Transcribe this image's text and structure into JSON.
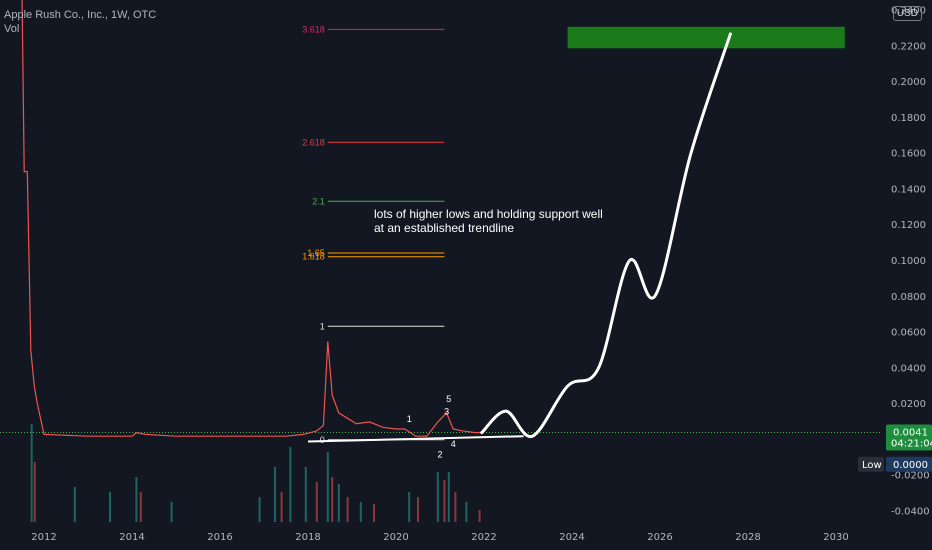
{
  "header": {
    "title": "Apple Rush Co., Inc., 1W, OTC",
    "vol_label": "Vol",
    "currency_button": "USD"
  },
  "colors": {
    "background": "#131722",
    "up": "#26a69a",
    "down": "#ef5350",
    "price_line": "#4caf50",
    "target_zone": "#1b7b1b",
    "annotation": "#ffffff"
  },
  "price_tag": {
    "value": "0.0041",
    "countdown": "04:21:04"
  },
  "low_tag": {
    "label": "Low",
    "value": "0.0000"
  },
  "annotation_text": [
    "lots of higher lows and holding support well",
    "at an established trendline"
  ],
  "chart_data": {
    "type": "line",
    "title": "Apple Rush Co., Inc., 1W, OTC",
    "x_ticks": [
      "2012",
      "2014",
      "2016",
      "2018",
      "2020",
      "2022",
      "2024",
      "2026",
      "2028",
      "2030"
    ],
    "y_ticks": [
      -0.04,
      -0.02,
      0.0,
      0.02,
      0.04,
      0.06,
      0.08,
      0.1,
      0.12,
      0.14,
      0.16,
      0.18,
      0.2,
      0.22,
      0.24
    ],
    "y_tick_labels": [
      "-0.0400",
      "-0.0200",
      "0.0000",
      "0.0200",
      "0.0400",
      "0.0600",
      "0.0800",
      "0.1000",
      "0.1200",
      "0.1400",
      "0.1600",
      "0.1800",
      "0.2000",
      "0.2200",
      "0.2400"
    ],
    "ylim": [
      -0.046,
      0.246
    ],
    "xlim": [
      2011.0,
      2031.0
    ],
    "price_series": {
      "x": [
        2011.05,
        2011.5,
        2011.55,
        2011.62,
        2011.7,
        2011.78,
        2011.85,
        2012.0,
        2013.0,
        2014.0,
        2014.1,
        2014.3,
        2015.0,
        2016.0,
        2017.0,
        2017.5,
        2017.9,
        2018.2,
        2018.35,
        2018.45,
        2018.55,
        2018.7,
        2018.9,
        2019.1,
        2019.4,
        2019.7,
        2020.0,
        2020.2,
        2020.45,
        2020.7,
        2020.95,
        2021.15,
        2021.3,
        2021.5,
        2021.8,
        2022.0
      ],
      "y": [
        0.25,
        0.25,
        0.15,
        0.15,
        0.05,
        0.03,
        0.02,
        0.003,
        0.002,
        0.002,
        0.004,
        0.003,
        0.002,
        0.002,
        0.002,
        0.002,
        0.003,
        0.005,
        0.008,
        0.055,
        0.025,
        0.015,
        0.012,
        0.009,
        0.01,
        0.007,
        0.006,
        0.006,
        0.002,
        0.002,
        0.01,
        0.015,
        0.006,
        0.005,
        0.004,
        0.0041
      ]
    },
    "projection": {
      "x": [
        2021.95,
        2022.5,
        2023.1,
        2023.9,
        2024.6,
        2025.3,
        2025.9,
        2026.7,
        2027.6
      ],
      "y": [
        0.004,
        0.016,
        0.002,
        0.03,
        0.04,
        0.1,
        0.081,
        0.16,
        0.227
      ]
    },
    "trendline": {
      "x": [
        2018.0,
        2022.9
      ],
      "y": [
        -0.001,
        0.002
      ]
    },
    "target_zone": {
      "x": [
        2023.9,
        2030.2
      ],
      "y": [
        0.219,
        0.231
      ]
    },
    "fib_levels": [
      {
        "label": "3.618",
        "value": 0.2296,
        "color": "#e91e63"
      },
      {
        "label": "2.618",
        "value": 0.1664,
        "color": "#f23645"
      },
      {
        "label": "2.1",
        "value": 0.1334,
        "color": "#4caf50"
      },
      {
        "label": "1.65",
        "value": 0.1045,
        "color": "#ff9800"
      },
      {
        "label": "1.618",
        "value": 0.1024,
        "color": "#ff9800"
      },
      {
        "label": "1",
        "value": 0.0635,
        "color": "#e0e0e0"
      },
      {
        "label": "0",
        "value": 0.0,
        "color": "#e0e0e0"
      }
    ],
    "fib_x": [
      2018.45,
      2021.1
    ],
    "wave_labels": [
      {
        "label": "1",
        "x": 2020.3,
        "y": 0.01
      },
      {
        "label": "2",
        "x": 2021.0,
        "y": -0.01
      },
      {
        "label": "3",
        "x": 2021.15,
        "y": 0.014
      },
      {
        "label": "4",
        "x": 2021.3,
        "y": -0.004
      },
      {
        "label": "5",
        "x": 2021.2,
        "y": 0.021
      }
    ],
    "volume_bars": [
      {
        "x": 2011.72,
        "h": 0.98,
        "up": true
      },
      {
        "x": 2011.79,
        "h": 0.6,
        "up": false
      },
      {
        "x": 2012.7,
        "h": 0.35,
        "up": true
      },
      {
        "x": 2013.5,
        "h": 0.3,
        "up": true
      },
      {
        "x": 2014.1,
        "h": 0.45,
        "up": true
      },
      {
        "x": 2014.2,
        "h": 0.3,
        "up": false
      },
      {
        "x": 2014.9,
        "h": 0.2,
        "up": true
      },
      {
        "x": 2016.9,
        "h": 0.25,
        "up": true
      },
      {
        "x": 2017.25,
        "h": 0.55,
        "up": true
      },
      {
        "x": 2017.4,
        "h": 0.3,
        "up": false
      },
      {
        "x": 2017.6,
        "h": 0.75,
        "up": true
      },
      {
        "x": 2017.95,
        "h": 0.55,
        "up": true
      },
      {
        "x": 2018.2,
        "h": 0.4,
        "up": false
      },
      {
        "x": 2018.45,
        "h": 0.7,
        "up": true
      },
      {
        "x": 2018.55,
        "h": 0.45,
        "up": false
      },
      {
        "x": 2018.7,
        "h": 0.38,
        "up": true
      },
      {
        "x": 2018.9,
        "h": 0.25,
        "up": false
      },
      {
        "x": 2019.2,
        "h": 0.2,
        "up": true
      },
      {
        "x": 2019.5,
        "h": 0.18,
        "up": false
      },
      {
        "x": 2020.3,
        "h": 0.3,
        "up": true
      },
      {
        "x": 2020.5,
        "h": 0.25,
        "up": false
      },
      {
        "x": 2020.95,
        "h": 0.5,
        "up": true
      },
      {
        "x": 2021.1,
        "h": 0.42,
        "up": false
      },
      {
        "x": 2021.2,
        "h": 0.5,
        "up": true
      },
      {
        "x": 2021.35,
        "h": 0.3,
        "up": false
      },
      {
        "x": 2021.6,
        "h": 0.2,
        "up": true
      },
      {
        "x": 2021.9,
        "h": 0.12,
        "up": false
      }
    ],
    "grid": false
  }
}
